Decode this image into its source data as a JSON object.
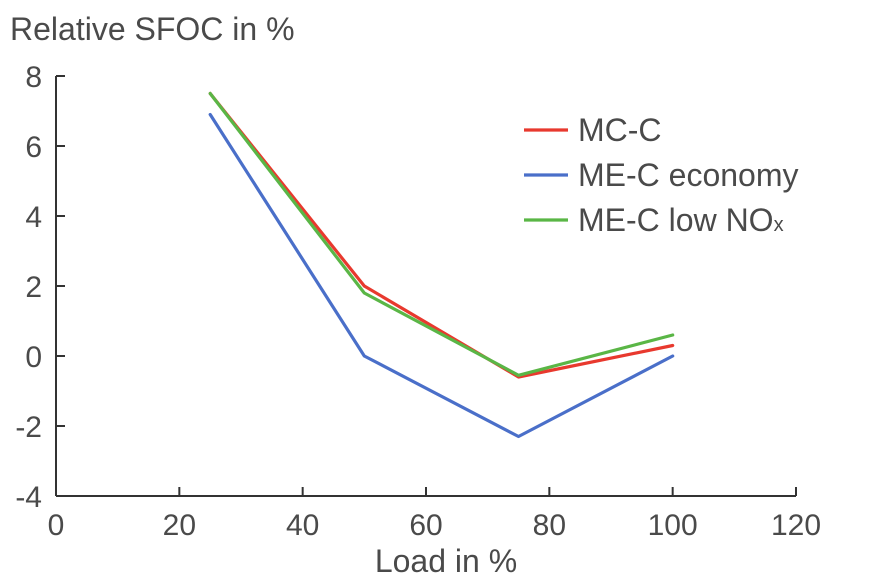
{
  "chart_data": {
    "type": "line",
    "ylabel": "Relative SFOC in %",
    "xlabel": "Load in %",
    "xlim": [
      0,
      120
    ],
    "ylim": [
      -4,
      8
    ],
    "x_ticks": [
      "0",
      "20",
      "40",
      "60",
      "80",
      "100",
      "120"
    ],
    "y_ticks": [
      "-4",
      "-2",
      "0",
      "2",
      "4",
      "6",
      "8"
    ],
    "grid": false,
    "legend_position": "top-right",
    "x": [
      25,
      50,
      75,
      100
    ],
    "series": [
      {
        "name": "MC-C",
        "color": "#e8392e",
        "values": [
          7.5,
          2.0,
          -0.6,
          0.3
        ]
      },
      {
        "name": "ME-C economy",
        "color": "#4a6fc9",
        "values": [
          6.9,
          0.0,
          -2.3,
          0.0
        ]
      },
      {
        "name": "ME-C low NOx",
        "name_main": "ME-C low NO",
        "name_sub": "x",
        "color": "#5ab646",
        "values": [
          7.5,
          1.8,
          -0.55,
          0.6
        ]
      }
    ]
  }
}
